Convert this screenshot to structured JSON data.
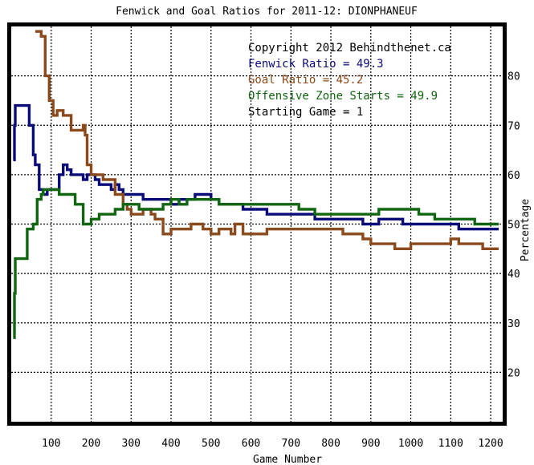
{
  "chart_data": {
    "type": "line",
    "title": "Fenwick and Goal Ratios for 2011-12: DIONPHANEUF",
    "xlabel": "Game Number",
    "ylabel": "Percentage",
    "xlim": [
      0,
      1230
    ],
    "ylim": [
      10,
      90
    ],
    "x_ticks": [
      100,
      200,
      300,
      400,
      500,
      600,
      700,
      800,
      900,
      1000,
      1100,
      1200
    ],
    "y_ticks": [
      20,
      30,
      40,
      50,
      60,
      70,
      80
    ],
    "y_axis_side": "right",
    "grid": true,
    "annotations": [
      {
        "text": "Copyright 2012 Behindthenet.ca",
        "color": "#000000"
      },
      {
        "text": "Fenwick Ratio = 49.3",
        "color": "#0a0a78"
      },
      {
        "text": "Goal Ratio = 45.2",
        "color": "#8b4a1c"
      },
      {
        "text": "Offensive Zone Starts = 49.9",
        "color": "#116611"
      },
      {
        "text": "Starting Game = 1",
        "color": "#000000"
      }
    ],
    "series": [
      {
        "name": "Fenwick Ratio",
        "color": "#0a0a78",
        "x": [
          5,
          8,
          10,
          15,
          35,
          45,
          55,
          60,
          70,
          80,
          90,
          100,
          120,
          130,
          140,
          150,
          160,
          170,
          180,
          190,
          200,
          210,
          220,
          230,
          240,
          250,
          260,
          270,
          280,
          290,
          300,
          310,
          320,
          330,
          340,
          350,
          360,
          380,
          400,
          420,
          440,
          460,
          480,
          500,
          520,
          540,
          560,
          580,
          600,
          620,
          640,
          660,
          680,
          700,
          720,
          740,
          760,
          780,
          800,
          820,
          840,
          860,
          880,
          900,
          920,
          940,
          960,
          980,
          1000,
          1020,
          1040,
          1060,
          1080,
          1100,
          1120,
          1140,
          1160,
          1180,
          1200,
          1220
        ],
        "y": [
          63,
          70,
          74,
          74,
          74,
          70,
          64,
          62,
          57,
          56,
          57,
          57,
          60,
          62,
          61,
          60,
          60,
          60,
          59,
          60,
          60,
          59,
          58,
          58,
          58,
          57,
          58,
          57,
          56,
          56,
          56,
          56,
          56,
          55,
          55,
          55,
          55,
          55,
          54,
          55,
          55,
          56,
          56,
          55,
          54,
          54,
          54,
          53,
          53,
          53,
          52,
          52,
          52,
          52,
          52,
          52,
          51,
          51,
          51,
          51,
          51,
          51,
          50,
          50,
          51,
          51,
          51,
          50,
          50,
          50,
          50,
          50,
          50,
          50,
          49,
          49,
          49,
          49,
          49,
          49
        ]
      },
      {
        "name": "Goal Ratio",
        "color": "#8b4a1c",
        "x": [
          60,
          75,
          85,
          95,
          105,
          115,
          130,
          150,
          170,
          180,
          185,
          190,
          200,
          210,
          230,
          250,
          260,
          270,
          280,
          290,
          300,
          330,
          350,
          360,
          380,
          400,
          430,
          450,
          470,
          480,
          500,
          520,
          550,
          560,
          580,
          600,
          640,
          680,
          700,
          720,
          760,
          800,
          830,
          860,
          880,
          900,
          920,
          940,
          960,
          980,
          1000,
          1030,
          1060,
          1080,
          1100,
          1120,
          1150,
          1180,
          1200,
          1220
        ],
        "y": [
          89,
          88,
          80,
          75,
          72,
          73,
          72,
          69,
          69,
          70,
          68,
          62,
          60,
          60,
          59,
          59,
          56,
          56,
          54,
          53,
          52,
          53,
          52,
          51,
          48,
          49,
          49,
          50,
          50,
          49,
          48,
          49,
          48,
          50,
          48,
          48,
          49,
          49,
          49,
          49,
          49,
          49,
          48,
          48,
          47,
          46,
          46,
          46,
          45,
          45,
          46,
          46,
          46,
          46,
          47,
          46,
          46,
          45,
          45,
          45
        ]
      },
      {
        "name": "Offensive Zone Starts",
        "color": "#116611",
        "x": [
          5,
          8,
          10,
          15,
          30,
          40,
          55,
          65,
          75,
          80,
          90,
          100,
          120,
          140,
          150,
          160,
          180,
          190,
          200,
          220,
          240,
          260,
          280,
          300,
          320,
          340,
          360,
          380,
          400,
          420,
          440,
          460,
          480,
          500,
          520,
          540,
          560,
          580,
          600,
          640,
          680,
          720,
          760,
          800,
          840,
          860,
          880,
          900,
          920,
          940,
          960,
          980,
          1000,
          1020,
          1040,
          1060,
          1080,
          1100,
          1120,
          1140,
          1160,
          1180,
          1200,
          1220
        ],
        "y": [
          27,
          36,
          43,
          43,
          43,
          49,
          50,
          55,
          56,
          57,
          57,
          57,
          56,
          56,
          56,
          54,
          50,
          50,
          51,
          52,
          52,
          53,
          54,
          54,
          53,
          53,
          53,
          54,
          55,
          54,
          55,
          55,
          55,
          55,
          54,
          54,
          54,
          54,
          54,
          54,
          54,
          53,
          52,
          52,
          52,
          52,
          52,
          52,
          53,
          53,
          53,
          53,
          53,
          52,
          52,
          51,
          51,
          51,
          51,
          51,
          50,
          50,
          50,
          50
        ]
      }
    ]
  }
}
